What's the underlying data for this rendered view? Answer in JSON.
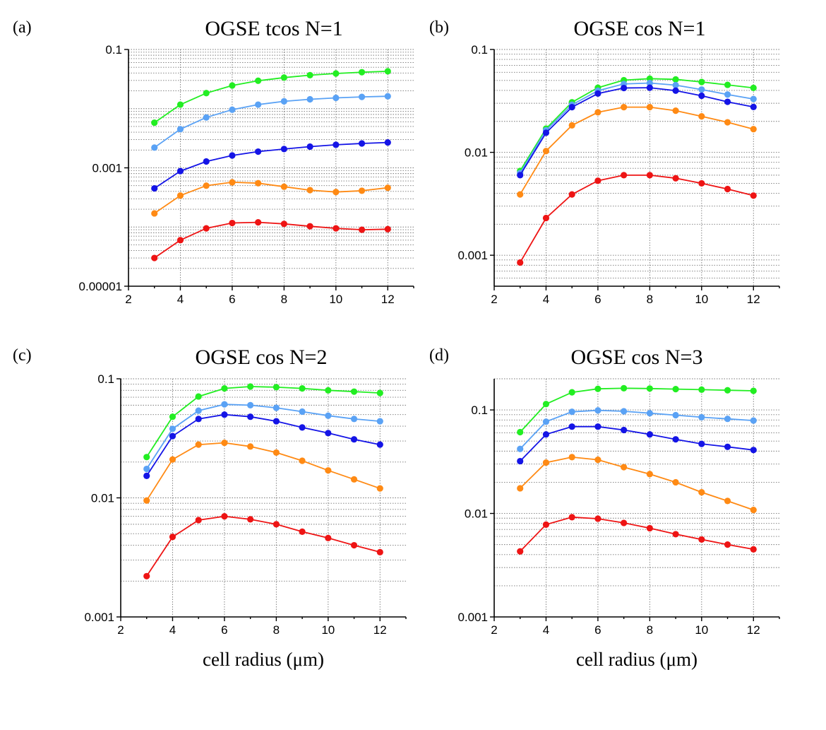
{
  "colors": {
    "green": "#22ee22",
    "light_blue": "#5aa2f5",
    "blue": "#1414e6",
    "orange": "#ff8a14",
    "red": "#ee1414"
  },
  "chart_data": [
    {
      "type": "line",
      "letter": "(a)",
      "title": "OGSE tcos N=1",
      "xlabel": "",
      "ylabel": "",
      "yscale": "log",
      "xlim": [
        2,
        13
      ],
      "ylim": [
        1e-05,
        0.1
      ],
      "xticks": [
        2,
        4,
        6,
        8,
        10,
        12
      ],
      "xtick_labels": [
        "2",
        "4",
        "6",
        "8",
        "10",
        "12"
      ],
      "yticks": [
        1e-05,
        0.001,
        0.1
      ],
      "ytick_labels": [
        "0.00001",
        "0.001",
        "0.1"
      ],
      "x": [
        3,
        4,
        5,
        6,
        7,
        8,
        9,
        10,
        11,
        12
      ],
      "series": [
        {
          "color": "green",
          "values": [
            0.0058,
            0.0117,
            0.0183,
            0.0246,
            0.0296,
            0.0335,
            0.0368,
            0.0393,
            0.0413,
            0.0428
          ]
        },
        {
          "color": "light_blue",
          "values": [
            0.0022,
            0.0045,
            0.0071,
            0.0096,
            0.0117,
            0.0133,
            0.0144,
            0.0152,
            0.0158,
            0.0162
          ]
        },
        {
          "color": "blue",
          "values": [
            0.00045,
            0.00088,
            0.00128,
            0.00162,
            0.00188,
            0.00208,
            0.00228,
            0.00245,
            0.00258,
            0.00268
          ]
        },
        {
          "color": "orange",
          "values": [
            0.00017,
            0.00034,
            0.0005,
            0.00057,
            0.00055,
            0.00048,
            0.00042,
            0.00039,
            0.00041,
            0.00046
          ]
        },
        {
          "color": "red",
          "values": [
            3e-05,
            6e-05,
            9.5e-05,
            0.000117,
            0.00012,
            0.000113,
            0.000103,
            9.5e-05,
            9e-05,
            9.2e-05
          ]
        }
      ]
    },
    {
      "type": "line",
      "letter": "(b)",
      "title": "OGSE cos N=1",
      "xlabel": "",
      "ylabel": "",
      "yscale": "log",
      "xlim": [
        2,
        13
      ],
      "ylim": [
        0.0005,
        0.1
      ],
      "xticks": [
        2,
        4,
        6,
        8,
        10,
        12
      ],
      "xtick_labels": [
        "2",
        "4",
        "6",
        "8",
        "10",
        "12"
      ],
      "yticks": [
        0.001,
        0.01,
        0.1
      ],
      "ytick_labels": [
        "0.001",
        "0.01",
        "0.1"
      ],
      "x": [
        3,
        4,
        5,
        6,
        7,
        8,
        9,
        10,
        11,
        12
      ],
      "series": [
        {
          "color": "green",
          "values": [
            0.0066,
            0.017,
            0.0307,
            0.0425,
            0.0503,
            0.052,
            0.0512,
            0.0483,
            0.0453,
            0.0423
          ]
        },
        {
          "color": "light_blue",
          "values": [
            0.0063,
            0.0164,
            0.029,
            0.0397,
            0.0462,
            0.0472,
            0.045,
            0.0408,
            0.0365,
            0.033
          ]
        },
        {
          "color": "blue",
          "values": [
            0.006,
            0.0155,
            0.0275,
            0.0373,
            0.0422,
            0.0425,
            0.0398,
            0.0355,
            0.031,
            0.0276
          ]
        },
        {
          "color": "orange",
          "values": [
            0.0039,
            0.0103,
            0.0183,
            0.0245,
            0.0275,
            0.0275,
            0.0254,
            0.0224,
            0.0196,
            0.0168
          ]
        },
        {
          "color": "red",
          "values": [
            0.00085,
            0.0023,
            0.0039,
            0.0053,
            0.006,
            0.006,
            0.0056,
            0.005,
            0.0044,
            0.0038
          ]
        }
      ]
    },
    {
      "type": "line",
      "letter": "(c)",
      "title": "OGSE cos N=2",
      "xlabel": "cell radius (μm)",
      "ylabel": "",
      "yscale": "log",
      "xlim": [
        2,
        13
      ],
      "ylim": [
        0.001,
        0.1
      ],
      "xticks": [
        2,
        4,
        6,
        8,
        10,
        12
      ],
      "xtick_labels": [
        "2",
        "4",
        "6",
        "8",
        "10",
        "12"
      ],
      "yticks": [
        0.001,
        0.01,
        0.1
      ],
      "ytick_labels": [
        "0.001",
        "0.01",
        "0.1"
      ],
      "x": [
        3,
        4,
        5,
        6,
        7,
        8,
        9,
        10,
        11,
        12
      ],
      "series": [
        {
          "color": "green",
          "values": [
            0.022,
            0.048,
            0.071,
            0.083,
            0.086,
            0.085,
            0.083,
            0.08,
            0.078,
            0.076
          ]
        },
        {
          "color": "light_blue",
          "values": [
            0.0175,
            0.038,
            0.054,
            0.061,
            0.06,
            0.057,
            0.053,
            0.049,
            0.046,
            0.044
          ]
        },
        {
          "color": "blue",
          "values": [
            0.0153,
            0.033,
            0.046,
            0.05,
            0.048,
            0.044,
            0.039,
            0.035,
            0.031,
            0.028
          ]
        },
        {
          "color": "orange",
          "values": [
            0.0095,
            0.021,
            0.028,
            0.029,
            0.027,
            0.024,
            0.0205,
            0.017,
            0.0143,
            0.012
          ]
        },
        {
          "color": "red",
          "values": [
            0.0022,
            0.0047,
            0.0065,
            0.007,
            0.0066,
            0.006,
            0.0052,
            0.0046,
            0.004,
            0.0035
          ]
        }
      ]
    },
    {
      "type": "line",
      "letter": "(d)",
      "title": "OGSE cos N=3",
      "xlabel": "cell radius (μm)",
      "ylabel": "",
      "yscale": "log",
      "xlim": [
        2,
        13
      ],
      "ylim": [
        0.001,
        0.2
      ],
      "xticks": [
        2,
        4,
        6,
        8,
        10,
        12
      ],
      "xtick_labels": [
        "2",
        "4",
        "6",
        "8",
        "10",
        "12"
      ],
      "yticks": [
        0.001,
        0.01,
        0.1
      ],
      "ytick_labels": [
        "0.001",
        "0.01",
        "0.1"
      ],
      "x": [
        3,
        4,
        5,
        6,
        7,
        8,
        9,
        10,
        11,
        12
      ],
      "series": [
        {
          "color": "green",
          "values": [
            0.061,
            0.114,
            0.148,
            0.16,
            0.162,
            0.161,
            0.159,
            0.157,
            0.155,
            0.153
          ]
        },
        {
          "color": "light_blue",
          "values": [
            0.042,
            0.077,
            0.096,
            0.099,
            0.097,
            0.093,
            0.089,
            0.085,
            0.082,
            0.079
          ]
        },
        {
          "color": "blue",
          "values": [
            0.032,
            0.058,
            0.069,
            0.069,
            0.064,
            0.058,
            0.052,
            0.047,
            0.044,
            0.041
          ]
        },
        {
          "color": "orange",
          "values": [
            0.0175,
            0.031,
            0.035,
            0.033,
            0.028,
            0.024,
            0.02,
            0.016,
            0.0132,
            0.0108
          ]
        },
        {
          "color": "red",
          "values": [
            0.0043,
            0.0078,
            0.0092,
            0.0089,
            0.0081,
            0.0072,
            0.0063,
            0.0056,
            0.005,
            0.0045
          ]
        }
      ]
    }
  ]
}
